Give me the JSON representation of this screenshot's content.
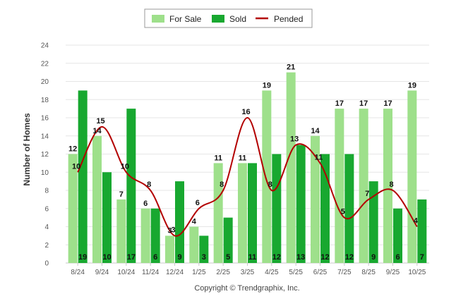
{
  "chart_data": {
    "type": "bar",
    "title": "",
    "xlabel": "",
    "ylabel": "Number of Homes",
    "ylim": [
      0,
      24
    ],
    "yticks": [
      0,
      2,
      4,
      6,
      8,
      10,
      12,
      14,
      16,
      18,
      20,
      22,
      24
    ],
    "grid": true,
    "legend_position": "top-center",
    "categories": [
      "8/24",
      "9/24",
      "10/24",
      "11/24",
      "12/24",
      "1/25",
      "2/25",
      "3/25",
      "4/25",
      "5/25",
      "6/25",
      "7/25",
      "8/25",
      "9/25",
      "10/25"
    ],
    "series": [
      {
        "name": "For Sale",
        "kind": "bar",
        "color": "#9ee08b",
        "values": [
          12,
          14,
          7,
          6,
          3,
          4,
          11,
          11,
          19,
          21,
          14,
          17,
          17,
          17,
          19
        ]
      },
      {
        "name": "Sold",
        "kind": "bar",
        "color": "#18a830",
        "values": [
          19,
          10,
          17,
          6,
          9,
          3,
          5,
          11,
          12,
          13,
          12,
          12,
          9,
          6,
          7
        ]
      },
      {
        "name": "Pended",
        "kind": "line",
        "color": "#b30000",
        "values": [
          10,
          15,
          10,
          8,
          3,
          6,
          8,
          16,
          8,
          13,
          11,
          5,
          7,
          8,
          4
        ]
      }
    ],
    "footer": "Copyright © Trendgraphix, Inc."
  }
}
